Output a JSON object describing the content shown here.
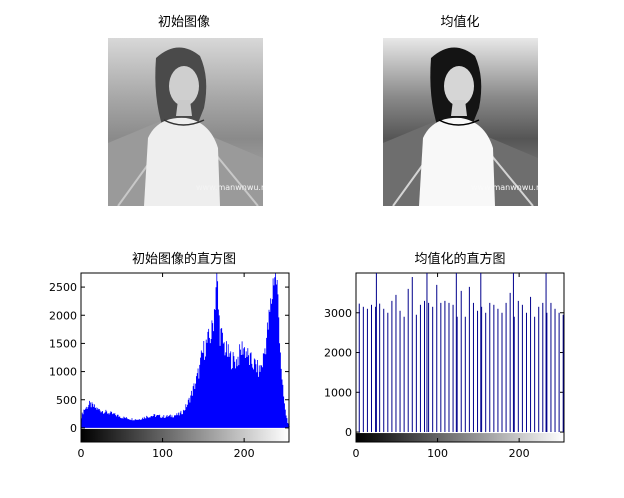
{
  "panels": {
    "top_left_title": "初始图像",
    "top_right_title": "均值化",
    "watermark": "www.manwnwu.net"
  },
  "colors": {
    "hist_original": "#0000ff",
    "hist_equalized": "#00008b",
    "axes": "#000000"
  },
  "chart_data": [
    {
      "type": "bar",
      "title": "初始图像的直方图",
      "xlabel": "",
      "ylabel": "",
      "xlim": [
        0,
        255
      ],
      "ylim": [
        -250,
        2750
      ],
      "xticks": [
        0,
        100,
        200
      ],
      "yticks": [
        0,
        500,
        1000,
        1500,
        2000,
        2500
      ],
      "colorbar": "grayscale 0-255 below x-axis",
      "profile": [
        [
          0,
          200
        ],
        [
          3,
          320
        ],
        [
          6,
          360
        ],
        [
          10,
          420
        ],
        [
          14,
          390
        ],
        [
          20,
          330
        ],
        [
          30,
          280
        ],
        [
          40,
          240
        ],
        [
          50,
          190
        ],
        [
          60,
          160
        ],
        [
          70,
          150
        ],
        [
          80,
          200
        ],
        [
          90,
          220
        ],
        [
          100,
          200
        ],
        [
          110,
          210
        ],
        [
          120,
          240
        ],
        [
          125,
          300
        ],
        [
          130,
          420
        ],
        [
          135,
          600
        ],
        [
          140,
          800
        ],
        [
          145,
          1050
        ],
        [
          148,
          1300
        ],
        [
          152,
          1450
        ],
        [
          156,
          1550
        ],
        [
          160,
          1700
        ],
        [
          163,
          2100
        ],
        [
          166,
          2750
        ],
        [
          168,
          2100
        ],
        [
          170,
          1700
        ],
        [
          174,
          1500
        ],
        [
          178,
          1350
        ],
        [
          182,
          1250
        ],
        [
          186,
          1200
        ],
        [
          190,
          1180
        ],
        [
          194,
          1300
        ],
        [
          198,
          1450
        ],
        [
          202,
          1350
        ],
        [
          206,
          1200
        ],
        [
          210,
          1150
        ],
        [
          214,
          1100
        ],
        [
          218,
          1000
        ],
        [
          222,
          1150
        ],
        [
          226,
          1500
        ],
        [
          230,
          1900
        ],
        [
          234,
          2400
        ],
        [
          236,
          2750
        ],
        [
          238,
          2750
        ],
        [
          240,
          2500
        ],
        [
          243,
          1700
        ],
        [
          246,
          800
        ],
        [
          250,
          300
        ],
        [
          253,
          100
        ],
        [
          255,
          30
        ]
      ]
    },
    {
      "type": "bar",
      "title": "均值化的直方图",
      "xlabel": "",
      "ylabel": "",
      "xlim": [
        0,
        255
      ],
      "ylim": [
        -250,
        4000
      ],
      "xticks": [
        0,
        100,
        200
      ],
      "yticks": [
        0,
        1000,
        2000,
        3000
      ],
      "colorbar": "grayscale 0-255 below x-axis",
      "bars": [
        [
          4,
          3230
        ],
        [
          9,
          3150
        ],
        [
          14,
          3100
        ],
        [
          19,
          3200
        ],
        [
          24,
          3150
        ],
        [
          29,
          3230
        ],
        [
          34,
          3100
        ],
        [
          39,
          3000
        ],
        [
          44,
          3300
        ],
        [
          49,
          3450
        ],
        [
          54,
          3050
        ],
        [
          59,
          2900
        ],
        [
          64,
          3600
        ],
        [
          69,
          3900
        ],
        [
          74,
          2950
        ],
        [
          79,
          3200
        ],
        [
          84,
          3300
        ],
        [
          89,
          3250
        ],
        [
          94,
          3150
        ],
        [
          99,
          3700
        ],
        [
          104,
          3250
        ],
        [
          109,
          3300
        ],
        [
          114,
          3250
        ],
        [
          119,
          3200
        ],
        [
          124,
          2900
        ],
        [
          129,
          3550
        ],
        [
          134,
          2900
        ],
        [
          139,
          3650
        ],
        [
          144,
          3250
        ],
        [
          149,
          3050
        ],
        [
          154,
          3150
        ],
        [
          159,
          3000
        ],
        [
          164,
          3250
        ],
        [
          169,
          3200
        ],
        [
          174,
          3100
        ],
        [
          179,
          3000
        ],
        [
          184,
          3250
        ],
        [
          189,
          3500
        ],
        [
          194,
          2900
        ],
        [
          199,
          3300
        ],
        [
          204,
          3200
        ],
        [
          209,
          3000
        ],
        [
          214,
          3400
        ],
        [
          219,
          2900
        ],
        [
          224,
          3150
        ],
        [
          229,
          3250
        ],
        [
          234,
          3000
        ],
        [
          239,
          3250
        ],
        [
          244,
          3100
        ],
        [
          249,
          3000
        ],
        [
          254,
          2950
        ]
      ],
      "tall_bars": [
        25,
        87,
        123,
        153,
        193,
        233
      ],
      "tall_value": 4000
    }
  ]
}
